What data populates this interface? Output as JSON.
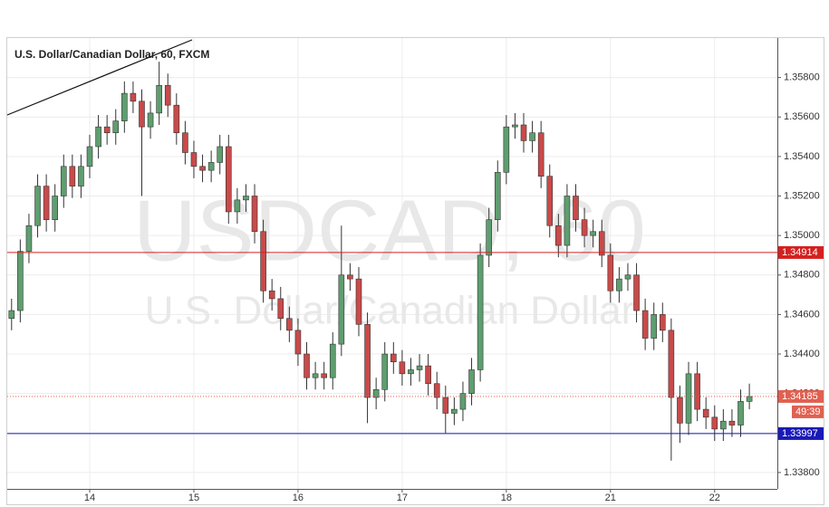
{
  "chart_data": {
    "type": "candlestick",
    "title": "U.S. Dollar/Canadian Dollar, 60, FXCM",
    "watermark": "USDCAD, 60",
    "watermark_subtitle": "U.S. Dollar/Canadian Dollar",
    "categories": [
      null,
      null,
      null,
      null,
      null,
      null,
      null,
      null,
      null,
      "14",
      null,
      null,
      null,
      null,
      null,
      null,
      null,
      null,
      null,
      null,
      null,
      "15",
      null,
      null,
      null,
      null,
      null,
      null,
      null,
      null,
      null,
      null,
      null,
      "16",
      null,
      null,
      null,
      null,
      null,
      null,
      null,
      null,
      null,
      null,
      null,
      "17",
      null,
      null,
      null,
      null,
      null,
      null,
      null,
      null,
      null,
      null,
      null,
      "18",
      null,
      null,
      null,
      null,
      null,
      null,
      null,
      null,
      null,
      null,
      null,
      "21",
      null,
      null,
      null,
      null,
      null,
      null,
      null,
      null,
      null,
      null,
      null,
      "22",
      null,
      null,
      null,
      null
    ],
    "open": [
      1.3458,
      1.3462,
      1.3492,
      1.3505,
      1.3525,
      1.3508,
      1.352,
      1.3535,
      1.3525,
      1.3535,
      1.3545,
      1.3555,
      1.3552,
      1.3558,
      1.3572,
      1.3568,
      1.3555,
      1.3562,
      1.3576,
      1.3566,
      1.3552,
      1.3542,
      1.3535,
      1.3533,
      1.3537,
      1.3545,
      1.3512,
      1.3518,
      1.352,
      1.3502,
      1.3472,
      1.3468,
      1.3458,
      1.3452,
      1.344,
      1.3428,
      1.343,
      1.3428,
      1.3445,
      1.348,
      1.3478,
      1.3455,
      1.3418,
      1.3422,
      1.344,
      1.3436,
      1.343,
      1.3432,
      1.3434,
      1.3425,
      1.3418,
      1.341,
      1.3412,
      1.342,
      1.3432,
      1.349,
      1.3508,
      1.3532,
      1.3555,
      1.3556,
      1.3548,
      1.3552,
      1.353,
      1.3505,
      1.3495,
      1.352,
      1.3508,
      1.35,
      1.3502,
      1.349,
      1.3472,
      1.3478,
      1.348,
      1.3462,
      1.3448,
      1.346,
      1.3452,
      1.3418,
      1.3405,
      1.343,
      1.3412,
      1.3408,
      1.3402,
      1.3406,
      1.3404,
      1.3416
    ],
    "high": [
      1.3468,
      1.3498,
      1.3511,
      1.3531,
      1.3531,
      1.3526,
      1.3541,
      1.3541,
      1.3541,
      1.3551,
      1.3561,
      1.3561,
      1.3564,
      1.3578,
      1.3578,
      1.3574,
      1.3568,
      1.3588,
      1.3582,
      1.3572,
      1.3558,
      1.3548,
      1.3541,
      1.3543,
      1.3551,
      1.3551,
      1.3524,
      1.3526,
      1.3526,
      1.3508,
      1.3478,
      1.3474,
      1.3464,
      1.3458,
      1.3446,
      1.3436,
      1.3436,
      1.3451,
      1.3505,
      1.3486,
      1.3484,
      1.3461,
      1.3428,
      1.3446,
      1.3446,
      1.3442,
      1.3438,
      1.344,
      1.344,
      1.3431,
      1.3424,
      1.3418,
      1.3426,
      1.3438,
      1.3496,
      1.3514,
      1.3538,
      1.3561,
      1.3562,
      1.3562,
      1.3558,
      1.3558,
      1.3536,
      1.3511,
      1.3526,
      1.3526,
      1.3514,
      1.3508,
      1.3508,
      1.3496,
      1.3484,
      1.3486,
      1.3486,
      1.3468,
      1.3466,
      1.3466,
      1.3458,
      1.3424,
      1.3436,
      1.3436,
      1.3418,
      1.3414,
      1.3412,
      1.3412,
      1.3422,
      1.3425
    ],
    "low": [
      1.3452,
      1.3456,
      1.3486,
      1.3499,
      1.3502,
      1.3502,
      1.3514,
      1.3519,
      1.3519,
      1.3529,
      1.3539,
      1.3546,
      1.3546,
      1.3552,
      1.3562,
      1.352,
      1.3549,
      1.3556,
      1.356,
      1.3546,
      1.3536,
      1.3529,
      1.3527,
      1.3527,
      1.3531,
      1.3506,
      1.3506,
      1.3512,
      1.3496,
      1.3466,
      1.3462,
      1.3452,
      1.3446,
      1.3434,
      1.3422,
      1.3422,
      1.3422,
      1.3422,
      1.3439,
      1.3472,
      1.3449,
      1.3405,
      1.3412,
      1.3416,
      1.343,
      1.3424,
      1.3424,
      1.3426,
      1.3419,
      1.3412,
      1.34,
      1.3404,
      1.3406,
      1.3414,
      1.3426,
      1.3484,
      1.3502,
      1.3526,
      1.3549,
      1.3542,
      1.3542,
      1.3524,
      1.3499,
      1.3489,
      1.3489,
      1.3502,
      1.3494,
      1.3494,
      1.3484,
      1.3466,
      1.3466,
      1.3472,
      1.3456,
      1.3442,
      1.3442,
      1.3446,
      1.3386,
      1.3395,
      1.3399,
      1.3406,
      1.3402,
      1.3396,
      1.3396,
      1.3398,
      1.3398,
      1.3412
    ],
    "close": [
      1.3462,
      1.3492,
      1.3505,
      1.3525,
      1.3508,
      1.352,
      1.3535,
      1.3525,
      1.3535,
      1.3545,
      1.3555,
      1.3552,
      1.3558,
      1.3572,
      1.3568,
      1.3555,
      1.3562,
      1.3576,
      1.3566,
      1.3552,
      1.3542,
      1.3535,
      1.3533,
      1.3537,
      1.3545,
      1.3512,
      1.3518,
      1.352,
      1.3502,
      1.3472,
      1.3468,
      1.3458,
      1.3452,
      1.344,
      1.3428,
      1.343,
      1.3428,
      1.3445,
      1.348,
      1.3478,
      1.3455,
      1.3418,
      1.3422,
      1.344,
      1.3436,
      1.343,
      1.3432,
      1.3434,
      1.3425,
      1.3418,
      1.341,
      1.3412,
      1.342,
      1.3432,
      1.349,
      1.3508,
      1.3532,
      1.3555,
      1.3556,
      1.3548,
      1.3552,
      1.353,
      1.3505,
      1.3495,
      1.352,
      1.3508,
      1.35,
      1.3502,
      1.349,
      1.3472,
      1.3478,
      1.348,
      1.3462,
      1.3448,
      1.346,
      1.3452,
      1.3418,
      1.3405,
      1.343,
      1.3412,
      1.3408,
      1.3402,
      1.3406,
      1.3404,
      1.3416,
      1.34185
    ],
    "up_color": "#5e9e6f",
    "down_color": "#c94a4a",
    "ylim": [
      1.33717,
      1.36
    ],
    "yticks": [
      {
        "value": 1.338,
        "label": "1.33800"
      },
      {
        "value": 1.34,
        "label": "1.34000"
      },
      {
        "value": 1.342,
        "label": "1.34200"
      },
      {
        "value": 1.344,
        "label": "1.34400"
      },
      {
        "value": 1.346,
        "label": "1.34600"
      },
      {
        "value": 1.348,
        "label": "1.34800"
      },
      {
        "value": 1.35,
        "label": "1.35000"
      },
      {
        "value": 1.352,
        "label": "1.35200"
      },
      {
        "value": 1.354,
        "label": "1.35400"
      },
      {
        "value": 1.356,
        "label": "1.35600"
      },
      {
        "value": 1.358,
        "label": "1.35800"
      }
    ],
    "grid": true,
    "hlines": [
      {
        "value": 1.34914,
        "color": "#d42020"
      },
      {
        "value": 1.33997,
        "color": "#1a1ab8"
      }
    ],
    "current": {
      "value": 1.34185,
      "color": "#e06050",
      "countdown": "49:39"
    }
  }
}
